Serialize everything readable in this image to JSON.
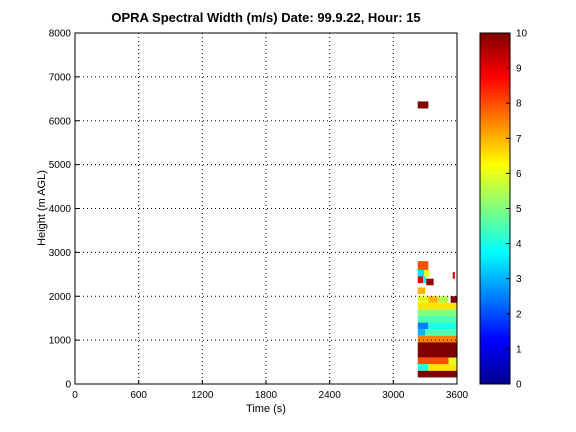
{
  "chart_data": {
    "type": "heatmap",
    "title": "OPRA Spectral Width (m/s)  Date: 99.9.22, Hour: 15",
    "xlabel": "Time (s)",
    "ylabel": "Height (m AGL)",
    "xlim": [
      0,
      3600
    ],
    "ylim": [
      0,
      8000
    ],
    "xticks": [
      0,
      600,
      1200,
      1800,
      2400,
      3000,
      3600
    ],
    "xtick_labels": [
      "0",
      "600",
      "1200",
      "1800",
      "2400",
      "3000",
      "3600"
    ],
    "yticks": [
      0,
      1000,
      2000,
      3000,
      4000,
      5000,
      6000,
      7000,
      8000
    ],
    "ytick_labels": [
      "0",
      "1000",
      "2000",
      "3000",
      "4000",
      "5000",
      "6000",
      "7000",
      "8000"
    ],
    "grid": true,
    "colorbar": {
      "range": [
        0,
        10
      ],
      "ticks": [
        0,
        1,
        2,
        3,
        4,
        5,
        6,
        7,
        8,
        9,
        10
      ],
      "tick_labels": [
        "0",
        "1",
        "2",
        "3",
        "4",
        "5",
        "6",
        "7",
        "8",
        "9",
        "10"
      ],
      "colormap": "jet"
    },
    "cells": [
      {
        "x0": 3230,
        "x1": 3330,
        "y0": 6280,
        "y1": 6440,
        "v": 10
      },
      {
        "x0": 3230,
        "x1": 3330,
        "y0": 2600,
        "y1": 2800,
        "v": 8
      },
      {
        "x0": 3230,
        "x1": 3290,
        "y0": 2450,
        "y1": 2600,
        "v": 3.5
      },
      {
        "x0": 3290,
        "x1": 3340,
        "y0": 2450,
        "y1": 2600,
        "v": 6
      },
      {
        "x0": 3230,
        "x1": 3280,
        "y0": 2300,
        "y1": 2450,
        "v": 9
      },
      {
        "x0": 3280,
        "x1": 3310,
        "y0": 2300,
        "y1": 2450,
        "v": 4
      },
      {
        "x0": 3310,
        "x1": 3380,
        "y0": 2250,
        "y1": 2400,
        "v": 9.8
      },
      {
        "x0": 3560,
        "x1": 3580,
        "y0": 2400,
        "y1": 2550,
        "v": 9
      },
      {
        "x0": 3230,
        "x1": 3300,
        "y0": 2050,
        "y1": 2200,
        "v": 7
      },
      {
        "x0": 3230,
        "x1": 3330,
        "y0": 1850,
        "y1": 2000,
        "v": 6
      },
      {
        "x0": 3330,
        "x1": 3420,
        "y0": 1850,
        "y1": 2000,
        "v": 7
      },
      {
        "x0": 3420,
        "x1": 3520,
        "y0": 1850,
        "y1": 2000,
        "v": 5.5
      },
      {
        "x0": 3540,
        "x1": 3600,
        "y0": 1850,
        "y1": 2000,
        "v": 10
      },
      {
        "x0": 3230,
        "x1": 3600,
        "y0": 1700,
        "y1": 1850,
        "v": 6.5
      },
      {
        "x0": 3230,
        "x1": 3600,
        "y0": 1550,
        "y1": 1700,
        "v": 5
      },
      {
        "x0": 3230,
        "x1": 3600,
        "y0": 1400,
        "y1": 1550,
        "v": 4.5
      },
      {
        "x0": 3230,
        "x1": 3330,
        "y0": 1250,
        "y1": 1400,
        "v": 2.5
      },
      {
        "x0": 3330,
        "x1": 3600,
        "y0": 1250,
        "y1": 1400,
        "v": 4
      },
      {
        "x0": 3230,
        "x1": 3300,
        "y0": 1100,
        "y1": 1250,
        "v": 3
      },
      {
        "x0": 3300,
        "x1": 3600,
        "y0": 1100,
        "y1": 1250,
        "v": 4.5
      },
      {
        "x0": 3230,
        "x1": 3600,
        "y0": 950,
        "y1": 1100,
        "v": 7.5
      },
      {
        "x0": 3230,
        "x1": 3600,
        "y0": 600,
        "y1": 950,
        "v": 10
      },
      {
        "x0": 3230,
        "x1": 3520,
        "y0": 450,
        "y1": 600,
        "v": 8
      },
      {
        "x0": 3520,
        "x1": 3600,
        "y0": 450,
        "y1": 600,
        "v": 6
      },
      {
        "x0": 3230,
        "x1": 3330,
        "y0": 300,
        "y1": 450,
        "v": 4
      },
      {
        "x0": 3330,
        "x1": 3600,
        "y0": 300,
        "y1": 450,
        "v": 6.5
      },
      {
        "x0": 3230,
        "x1": 3600,
        "y0": 150,
        "y1": 300,
        "v": 10
      }
    ]
  }
}
